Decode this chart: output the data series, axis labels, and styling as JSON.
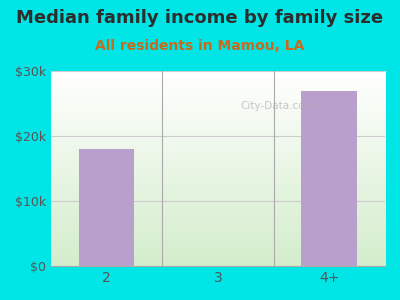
{
  "title": "Median family income by family size",
  "subtitle": "All residents in Mamou, LA",
  "categories": [
    "2",
    "3",
    "4+"
  ],
  "values": [
    18000,
    0,
    27000
  ],
  "bar_color": "#b9a0cc",
  "background_color": "#00e5e5",
  "plot_bg_top": "#ffffff",
  "plot_bg_bottom": "#d4edcc",
  "ylim": [
    0,
    30000
  ],
  "yticks": [
    0,
    10000,
    20000,
    30000
  ],
  "ytick_labels": [
    "$0",
    "$10k",
    "$20k",
    "$30k"
  ],
  "title_color": "#2d2d2d",
  "subtitle_color": "#c8691b",
  "title_fontsize": 13,
  "subtitle_fontsize": 10,
  "tick_color": "#555555",
  "grid_color": "#cccccc",
  "watermark": "City-Data.com"
}
